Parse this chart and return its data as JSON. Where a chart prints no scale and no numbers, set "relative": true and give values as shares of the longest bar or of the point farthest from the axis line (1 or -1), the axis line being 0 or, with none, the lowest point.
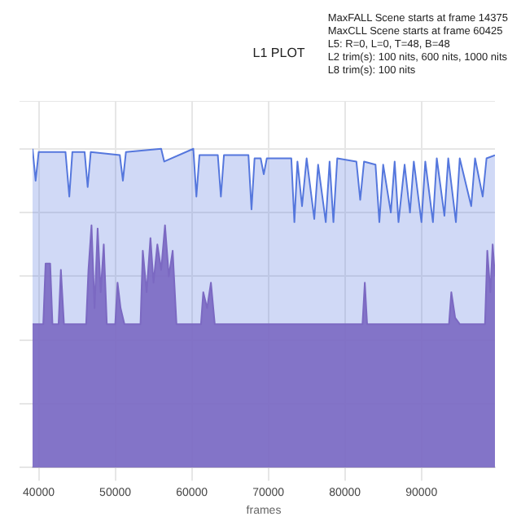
{
  "chart_data": {
    "type": "area",
    "title": "L1 PLOT",
    "xlabel": "frames",
    "relative": true,
    "grid": true,
    "legend": false,
    "marker": "none",
    "annotations": [
      "MaxFALL Scene starts at frame 14375",
      "MaxCLL Scene starts at frame 60425",
      "L5: R=0, L=0, T=48, B=48",
      "L2 trim(s): 100 nits, 600 nits, 1000 nits",
      "L8 trim(s): 100 nits"
    ],
    "xlim": [
      39200,
      99600
    ],
    "xticks": [
      40000,
      50000,
      60000,
      70000,
      80000,
      90000
    ],
    "series": [
      {
        "color": "#5577dd",
        "x": [
          39200,
          39600,
          40000,
          43500,
          44000,
          44400,
          46000,
          46400,
          46800,
          50600,
          51000,
          51400,
          56000,
          56400,
          60200,
          60600,
          61000,
          63400,
          63800,
          64200,
          67400,
          67800,
          68200,
          69000,
          69400,
          69800,
          73000,
          73400,
          73800,
          74400,
          75000,
          76000,
          76500,
          77500,
          78000,
          78500,
          79000,
          81500,
          82000,
          82500,
          84000,
          84500,
          85000,
          86000,
          86500,
          87000,
          87800,
          88500,
          89000,
          90000,
          90500,
          91500,
          92000,
          93000,
          93500,
          94500,
          95000,
          96500,
          97000,
          98000,
          98500,
          99600
        ],
        "values": [
          1.0,
          0.9,
          0.99,
          0.99,
          0.85,
          0.99,
          0.99,
          0.88,
          0.99,
          0.98,
          0.9,
          0.99,
          1.0,
          0.96,
          1.0,
          0.85,
          0.98,
          0.98,
          0.85,
          0.98,
          0.98,
          0.81,
          0.97,
          0.97,
          0.92,
          0.97,
          0.97,
          0.77,
          0.96,
          0.82,
          0.97,
          0.78,
          0.95,
          0.77,
          0.96,
          0.77,
          0.97,
          0.96,
          0.84,
          0.96,
          0.95,
          0.77,
          0.95,
          0.8,
          0.96,
          0.77,
          0.95,
          0.8,
          0.96,
          0.77,
          0.96,
          0.77,
          0.97,
          0.79,
          0.97,
          0.77,
          0.97,
          0.82,
          0.97,
          0.85,
          0.97,
          0.98
        ]
      },
      {
        "color": "#8a64b8",
        "x": [
          39200,
          40600,
          40900,
          41500,
          41800,
          42600,
          42900,
          43300,
          46200,
          46500,
          46900,
          47300,
          47700,
          48100,
          48500,
          48900,
          50000,
          50300,
          50700,
          51200,
          53300,
          53600,
          54100,
          54600,
          55000,
          55500,
          56000,
          56500,
          57000,
          57500,
          58000,
          61200,
          61500,
          62000,
          62500,
          63000,
          82300,
          82600,
          82900,
          93600,
          93900,
          94400,
          95000,
          98300,
          98600,
          99000,
          99300,
          99600
        ],
        "values": [
          0.45,
          0.45,
          0.64,
          0.64,
          0.45,
          0.45,
          0.62,
          0.45,
          0.45,
          0.62,
          0.76,
          0.5,
          0.75,
          0.55,
          0.7,
          0.45,
          0.45,
          0.58,
          0.5,
          0.45,
          0.45,
          0.68,
          0.55,
          0.72,
          0.58,
          0.7,
          0.62,
          0.76,
          0.6,
          0.68,
          0.45,
          0.45,
          0.55,
          0.5,
          0.58,
          0.45,
          0.45,
          0.58,
          0.45,
          0.45,
          0.55,
          0.47,
          0.45,
          0.45,
          0.68,
          0.55,
          0.7,
          0.6
        ]
      }
    ]
  }
}
